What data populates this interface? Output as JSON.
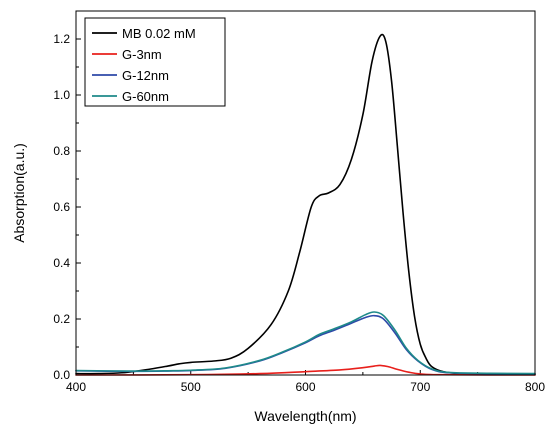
{
  "chart_data": {
    "type": "line",
    "xlabel": "Wavelength(nm)",
    "ylabel": "Absorption(a.u.)",
    "xlim": [
      400,
      800
    ],
    "ylim": [
      0,
      1.3
    ],
    "xticks": [
      "400",
      "500",
      "600",
      "700",
      "800"
    ],
    "yticks": [
      "0.0",
      "0.2",
      "0.4",
      "0.6",
      "0.8",
      "1.0",
      "1.2"
    ],
    "grid": false,
    "legend_position": "top-left",
    "series": [
      {
        "name": "MB 0.02 mM",
        "color": "#000000",
        "points": [
          [
            400,
            0.005
          ],
          [
            420,
            0.005
          ],
          [
            440,
            0.008
          ],
          [
            460,
            0.018
          ],
          [
            480,
            0.032
          ],
          [
            490,
            0.04
          ],
          [
            500,
            0.045
          ],
          [
            520,
            0.05
          ],
          [
            535,
            0.06
          ],
          [
            550,
            0.095
          ],
          [
            570,
            0.18
          ],
          [
            585,
            0.3
          ],
          [
            595,
            0.44
          ],
          [
            605,
            0.6
          ],
          [
            612,
            0.64
          ],
          [
            620,
            0.65
          ],
          [
            630,
            0.68
          ],
          [
            640,
            0.77
          ],
          [
            650,
            0.93
          ],
          [
            658,
            1.12
          ],
          [
            665,
            1.21
          ],
          [
            670,
            1.19
          ],
          [
            675,
            1.05
          ],
          [
            680,
            0.82
          ],
          [
            685,
            0.58
          ],
          [
            690,
            0.37
          ],
          [
            695,
            0.21
          ],
          [
            700,
            0.11
          ],
          [
            705,
            0.06
          ],
          [
            710,
            0.03
          ],
          [
            720,
            0.012
          ],
          [
            735,
            0.005
          ],
          [
            760,
            0.002
          ],
          [
            800,
            0.002
          ]
        ]
      },
      {
        "name": "G-3nm",
        "color": "#e8201c",
        "points": [
          [
            400,
            0.0
          ],
          [
            500,
            0.001
          ],
          [
            560,
            0.005
          ],
          [
            600,
            0.012
          ],
          [
            630,
            0.018
          ],
          [
            650,
            0.026
          ],
          [
            660,
            0.032
          ],
          [
            665,
            0.034
          ],
          [
            672,
            0.03
          ],
          [
            680,
            0.02
          ],
          [
            690,
            0.01
          ],
          [
            700,
            0.004
          ],
          [
            720,
            0.001
          ],
          [
            800,
            0.0
          ]
        ]
      },
      {
        "name": "G-12nm",
        "color": "#2e4aa8",
        "points": [
          [
            400,
            0.015
          ],
          [
            450,
            0.013
          ],
          [
            480,
            0.014
          ],
          [
            500,
            0.016
          ],
          [
            530,
            0.024
          ],
          [
            560,
            0.05
          ],
          [
            580,
            0.08
          ],
          [
            600,
            0.115
          ],
          [
            612,
            0.14
          ],
          [
            625,
            0.16
          ],
          [
            640,
            0.185
          ],
          [
            652,
            0.205
          ],
          [
            660,
            0.212
          ],
          [
            668,
            0.2
          ],
          [
            678,
            0.15
          ],
          [
            688,
            0.09
          ],
          [
            698,
            0.05
          ],
          [
            710,
            0.02
          ],
          [
            725,
            0.008
          ],
          [
            760,
            0.005
          ],
          [
            800,
            0.004
          ]
        ]
      },
      {
        "name": "G-60nm",
        "color": "#1e8a8a",
        "points": [
          [
            400,
            0.016
          ],
          [
            450,
            0.014
          ],
          [
            480,
            0.015
          ],
          [
            500,
            0.017
          ],
          [
            530,
            0.025
          ],
          [
            560,
            0.052
          ],
          [
            580,
            0.082
          ],
          [
            600,
            0.118
          ],
          [
            612,
            0.145
          ],
          [
            625,
            0.165
          ],
          [
            640,
            0.19
          ],
          [
            652,
            0.215
          ],
          [
            660,
            0.225
          ],
          [
            668,
            0.212
          ],
          [
            678,
            0.16
          ],
          [
            688,
            0.095
          ],
          [
            698,
            0.052
          ],
          [
            710,
            0.022
          ],
          [
            725,
            0.009
          ],
          [
            760,
            0.006
          ],
          [
            800,
            0.005
          ]
        ]
      }
    ]
  }
}
